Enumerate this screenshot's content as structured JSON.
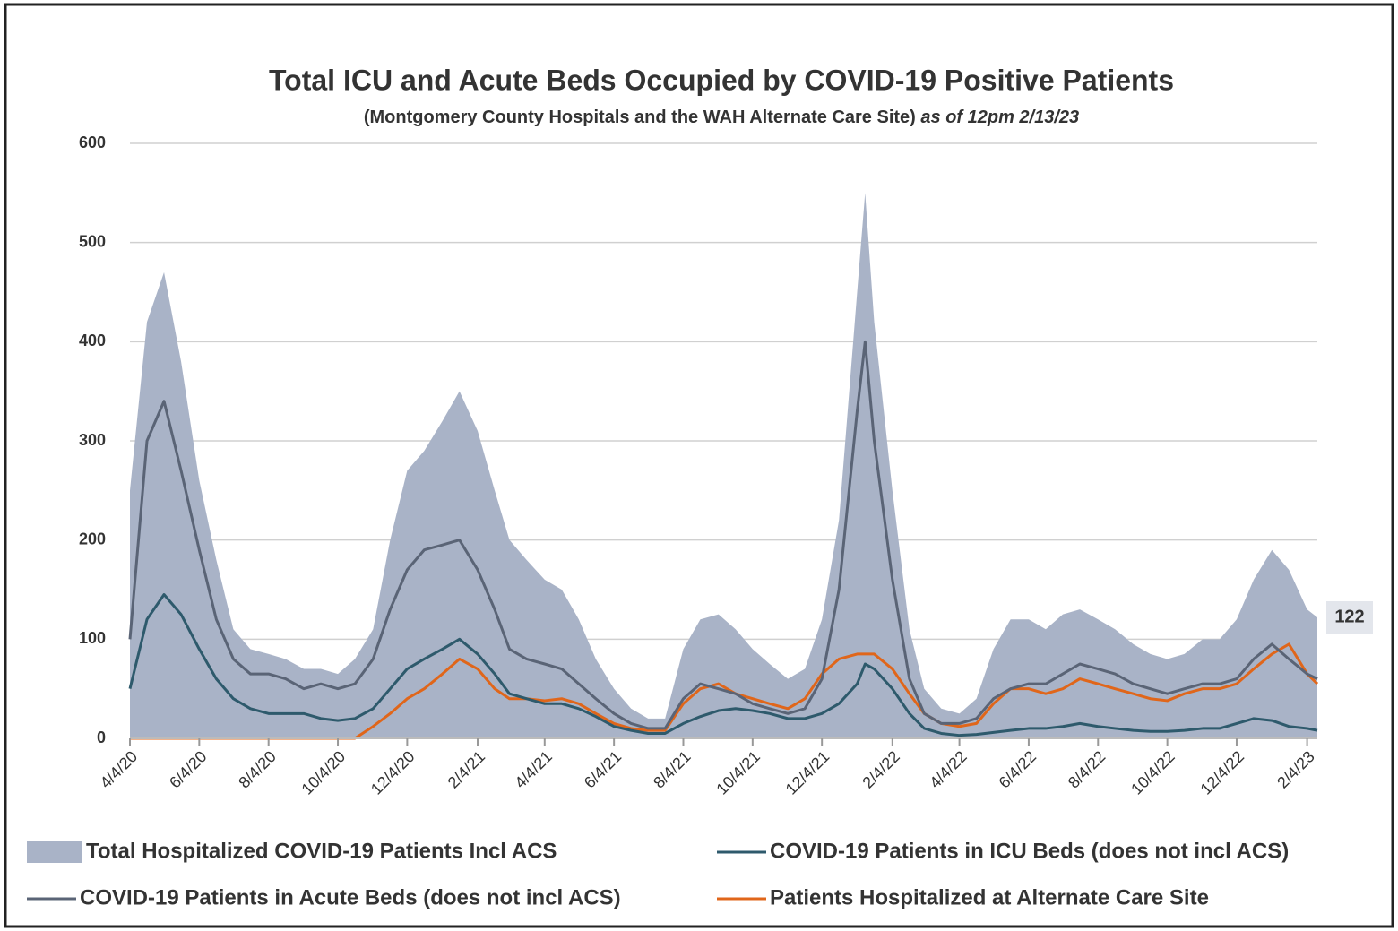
{
  "chart_data": {
    "type": "line",
    "title": "Total ICU and Acute Beds Occupied by COVID-19 Positive Patients",
    "subtitle": "(Montgomery County Hospitals and the WAH Alternate Care Site)",
    "subtitle_note": "as of  12pm 2/13/23",
    "x": [
      "2020-04-04",
      "2020-04-19",
      "2020-05-04",
      "2020-05-19",
      "2020-06-04",
      "2020-06-19",
      "2020-07-04",
      "2020-07-19",
      "2020-08-04",
      "2020-08-19",
      "2020-09-04",
      "2020-09-19",
      "2020-10-04",
      "2020-10-19",
      "2020-11-04",
      "2020-11-19",
      "2020-12-04",
      "2020-12-19",
      "2021-01-04",
      "2021-01-19",
      "2021-02-04",
      "2021-02-19",
      "2021-03-04",
      "2021-03-19",
      "2021-04-04",
      "2021-04-19",
      "2021-05-04",
      "2021-05-19",
      "2021-06-04",
      "2021-06-19",
      "2021-07-04",
      "2021-07-19",
      "2021-08-04",
      "2021-08-19",
      "2021-09-04",
      "2021-09-19",
      "2021-10-04",
      "2021-10-19",
      "2021-11-04",
      "2021-11-19",
      "2021-12-04",
      "2021-12-19",
      "2022-01-04",
      "2022-01-11",
      "2022-01-19",
      "2022-02-04",
      "2022-02-19",
      "2022-03-04",
      "2022-03-19",
      "2022-04-04",
      "2022-04-19",
      "2022-05-04",
      "2022-05-19",
      "2022-06-04",
      "2022-06-19",
      "2022-07-04",
      "2022-07-19",
      "2022-08-04",
      "2022-08-19",
      "2022-09-04",
      "2022-09-19",
      "2022-10-04",
      "2022-10-19",
      "2022-11-04",
      "2022-11-19",
      "2022-12-04",
      "2022-12-19",
      "2023-01-04",
      "2023-01-19",
      "2023-02-04",
      "2023-02-13"
    ],
    "series": [
      {
        "name": "Total Hospitalized COVID-19 Patients Incl ACS",
        "color": "#a9b3c7",
        "kind": "area",
        "values": [
          250,
          420,
          470,
          380,
          260,
          180,
          110,
          90,
          85,
          80,
          70,
          70,
          65,
          80,
          110,
          200,
          270,
          290,
          320,
          350,
          310,
          250,
          200,
          180,
          160,
          150,
          120,
          80,
          50,
          30,
          20,
          20,
          90,
          120,
          125,
          110,
          90,
          75,
          60,
          70,
          120,
          220,
          450,
          550,
          420,
          250,
          110,
          50,
          30,
          25,
          40,
          90,
          120,
          120,
          110,
          125,
          130,
          120,
          110,
          95,
          85,
          80,
          85,
          100,
          100,
          120,
          160,
          190,
          170,
          130,
          122
        ],
        "value_labels": [
          null,
          null,
          null,
          null,
          null,
          null,
          null,
          null,
          null,
          null,
          null,
          null,
          null,
          null,
          null,
          null,
          null,
          null,
          null,
          null,
          null,
          null,
          null,
          null,
          null,
          null,
          null,
          null,
          null,
          null,
          null,
          null,
          null,
          null,
          null,
          null,
          null,
          null,
          null,
          null,
          null,
          null,
          null,
          null,
          null,
          null,
          null,
          null,
          null,
          null,
          null,
          null,
          null,
          null,
          null,
          null,
          null,
          null,
          null,
          null,
          null,
          null,
          null,
          null,
          null,
          null,
          null,
          null,
          null,
          null,
          "122"
        ]
      },
      {
        "name": "COVID-19 Patients in  ICU Beds (does not incl ACS)",
        "color": "#2e5a6c",
        "kind": "line",
        "values": [
          50,
          120,
          145,
          125,
          90,
          60,
          40,
          30,
          25,
          25,
          25,
          20,
          18,
          20,
          30,
          50,
          70,
          80,
          90,
          100,
          85,
          65,
          45,
          40,
          35,
          35,
          30,
          22,
          12,
          8,
          5,
          5,
          15,
          22,
          28,
          30,
          28,
          25,
          20,
          20,
          25,
          35,
          55,
          75,
          70,
          50,
          25,
          10,
          5,
          3,
          4,
          6,
          8,
          10,
          10,
          12,
          15,
          12,
          10,
          8,
          7,
          7,
          8,
          10,
          10,
          15,
          20,
          18,
          12,
          10,
          8
        ]
      },
      {
        "name": "COVID-19 Patients in Acute Beds (does not incl ACS)",
        "color": "#5a6476",
        "kind": "line",
        "values": [
          100,
          300,
          340,
          270,
          190,
          120,
          80,
          65,
          65,
          60,
          50,
          55,
          50,
          55,
          80,
          130,
          170,
          190,
          195,
          200,
          170,
          130,
          90,
          80,
          75,
          70,
          55,
          40,
          25,
          15,
          10,
          10,
          40,
          55,
          50,
          45,
          35,
          30,
          25,
          30,
          60,
          150,
          330,
          400,
          300,
          160,
          60,
          25,
          15,
          15,
          20,
          40,
          50,
          55,
          55,
          65,
          75,
          70,
          65,
          55,
          50,
          45,
          50,
          55,
          55,
          60,
          80,
          95,
          80,
          65,
          60
        ]
      },
      {
        "name": "Patients Hospitalized at Alternate Care Site",
        "color": "#e0661a",
        "kind": "line",
        "values": [
          0,
          0,
          0,
          0,
          0,
          0,
          0,
          0,
          0,
          0,
          0,
          0,
          0,
          0,
          12,
          25,
          40,
          50,
          65,
          80,
          70,
          50,
          40,
          40,
          38,
          40,
          35,
          25,
          15,
          10,
          8,
          8,
          35,
          50,
          55,
          45,
          40,
          35,
          30,
          40,
          65,
          80,
          85,
          85,
          85,
          70,
          45,
          25,
          15,
          12,
          15,
          35,
          50,
          50,
          45,
          50,
          60,
          55,
          50,
          45,
          40,
          38,
          45,
          50,
          50,
          55,
          70,
          85,
          95,
          65,
          55
        ]
      }
    ],
    "xlim": [
      "2020-04-04",
      "2023-02-13"
    ],
    "xticks": [
      {
        "value": "2020-04-04",
        "label": "4/4/20"
      },
      {
        "value": "2020-06-04",
        "label": "6/4/20"
      },
      {
        "value": "2020-08-04",
        "label": "8/4/20"
      },
      {
        "value": "2020-10-04",
        "label": "10/4/20"
      },
      {
        "value": "2020-12-04",
        "label": "12/4/20"
      },
      {
        "value": "2021-02-04",
        "label": "2/4/21"
      },
      {
        "value": "2021-04-04",
        "label": "4/4/21"
      },
      {
        "value": "2021-06-04",
        "label": "6/4/21"
      },
      {
        "value": "2021-08-04",
        "label": "8/4/21"
      },
      {
        "value": "2021-10-04",
        "label": "10/4/21"
      },
      {
        "value": "2021-12-04",
        "label": "12/4/21"
      },
      {
        "value": "2022-02-04",
        "label": "2/4/22"
      },
      {
        "value": "2022-04-04",
        "label": "4/4/22"
      },
      {
        "value": "2022-06-04",
        "label": "6/4/22"
      },
      {
        "value": "2022-08-04",
        "label": "8/4/22"
      },
      {
        "value": "2022-10-04",
        "label": "10/4/22"
      },
      {
        "value": "2022-12-04",
        "label": "12/4/22"
      },
      {
        "value": "2023-02-04",
        "label": "2/4/23"
      }
    ],
    "ylim": [
      0,
      600
    ],
    "yticks": [
      0,
      100,
      200,
      300,
      400,
      500,
      600
    ],
    "grid": true,
    "legend": "bottom"
  }
}
